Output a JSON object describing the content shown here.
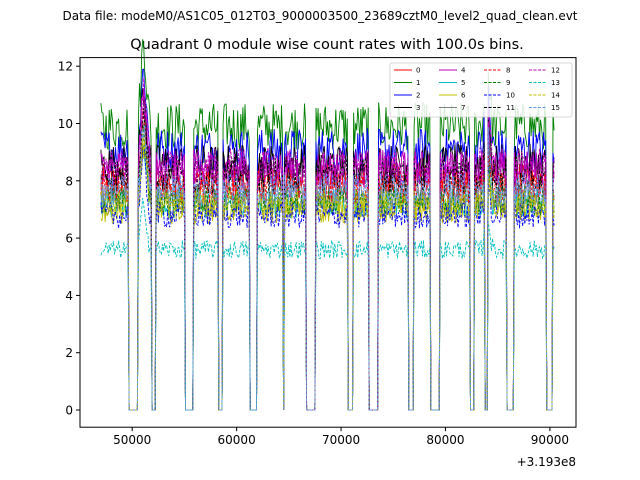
{
  "figure": {
    "suptitle": "Data file: modeM0/AS1C05_012T03_9000003500_23689cztM0_level2_quad_clean.evt"
  },
  "chart_data": {
    "type": "line",
    "title": "Quadrant 0 module wise count rates with 100.0s bins.",
    "xlabel": "",
    "ylabel": "",
    "x_offset_label": "+3.193e8",
    "xlim": [
      45000,
      92500
    ],
    "ylim": [
      -0.6,
      12.3
    ],
    "xticks": [
      50000,
      60000,
      70000,
      80000,
      90000
    ],
    "xtick_labels": [
      "50000",
      "60000",
      "70000",
      "80000",
      "90000"
    ],
    "yticks": [
      0,
      2,
      4,
      6,
      8,
      10,
      12
    ],
    "ytick_labels": [
      "0",
      "2",
      "4",
      "6",
      "8",
      "10",
      "12"
    ],
    "legend_position": "upper right",
    "gti_intervals": [
      [
        47000,
        49650
      ],
      [
        50600,
        51800
      ],
      [
        52300,
        55050
      ],
      [
        55900,
        58200
      ],
      [
        58700,
        61200
      ],
      [
        61950,
        64400
      ],
      [
        64600,
        66600
      ],
      [
        67600,
        70600
      ],
      [
        71200,
        72600
      ],
      [
        73550,
        76400
      ],
      [
        77000,
        78500
      ],
      [
        79500,
        82300
      ],
      [
        82800,
        83750
      ],
      [
        84100,
        85800
      ],
      [
        86600,
        89600
      ],
      [
        90300,
        90450
      ]
    ],
    "series": [
      {
        "name": "0",
        "color": "#ff0000",
        "style": "solid",
        "mean": 8.0
      },
      {
        "name": "1",
        "color": "#008000",
        "style": "solid",
        "mean": 9.9
      },
      {
        "name": "2",
        "color": "#0000ff",
        "style": "solid",
        "mean": 9.1
      },
      {
        "name": "3",
        "color": "#000000",
        "style": "solid",
        "mean": 8.6
      },
      {
        "name": "4",
        "color": "#bf00bf",
        "style": "solid",
        "mean": 8.4
      },
      {
        "name": "5",
        "color": "#00bfbf",
        "style": "solid",
        "mean": 7.2
      },
      {
        "name": "6",
        "color": "#bfbf00",
        "style": "solid",
        "mean": 7.0
      },
      {
        "name": "7",
        "color": "#808080",
        "style": "solid",
        "mean": 7.5
      },
      {
        "name": "8",
        "color": "#ff0000",
        "style": "dashed",
        "mean": 7.8
      },
      {
        "name": "9",
        "color": "#008000",
        "style": "dashed",
        "mean": 7.3
      },
      {
        "name": "10",
        "color": "#0000ff",
        "style": "dashed",
        "mean": 6.8
      },
      {
        "name": "11",
        "color": "#000000",
        "style": "dashed",
        "mean": 8.2
      },
      {
        "name": "12",
        "color": "#bf00bf",
        "style": "dashed",
        "mean": 8.5
      },
      {
        "name": "13",
        "color": "#00bfbf",
        "style": "dashed",
        "mean": 5.6
      },
      {
        "name": "14",
        "color": "#bfbf00",
        "style": "dashed",
        "mean": 7.2
      },
      {
        "name": "15",
        "color": "#6495ed",
        "style": "dashed",
        "mean": 7.7
      }
    ]
  }
}
